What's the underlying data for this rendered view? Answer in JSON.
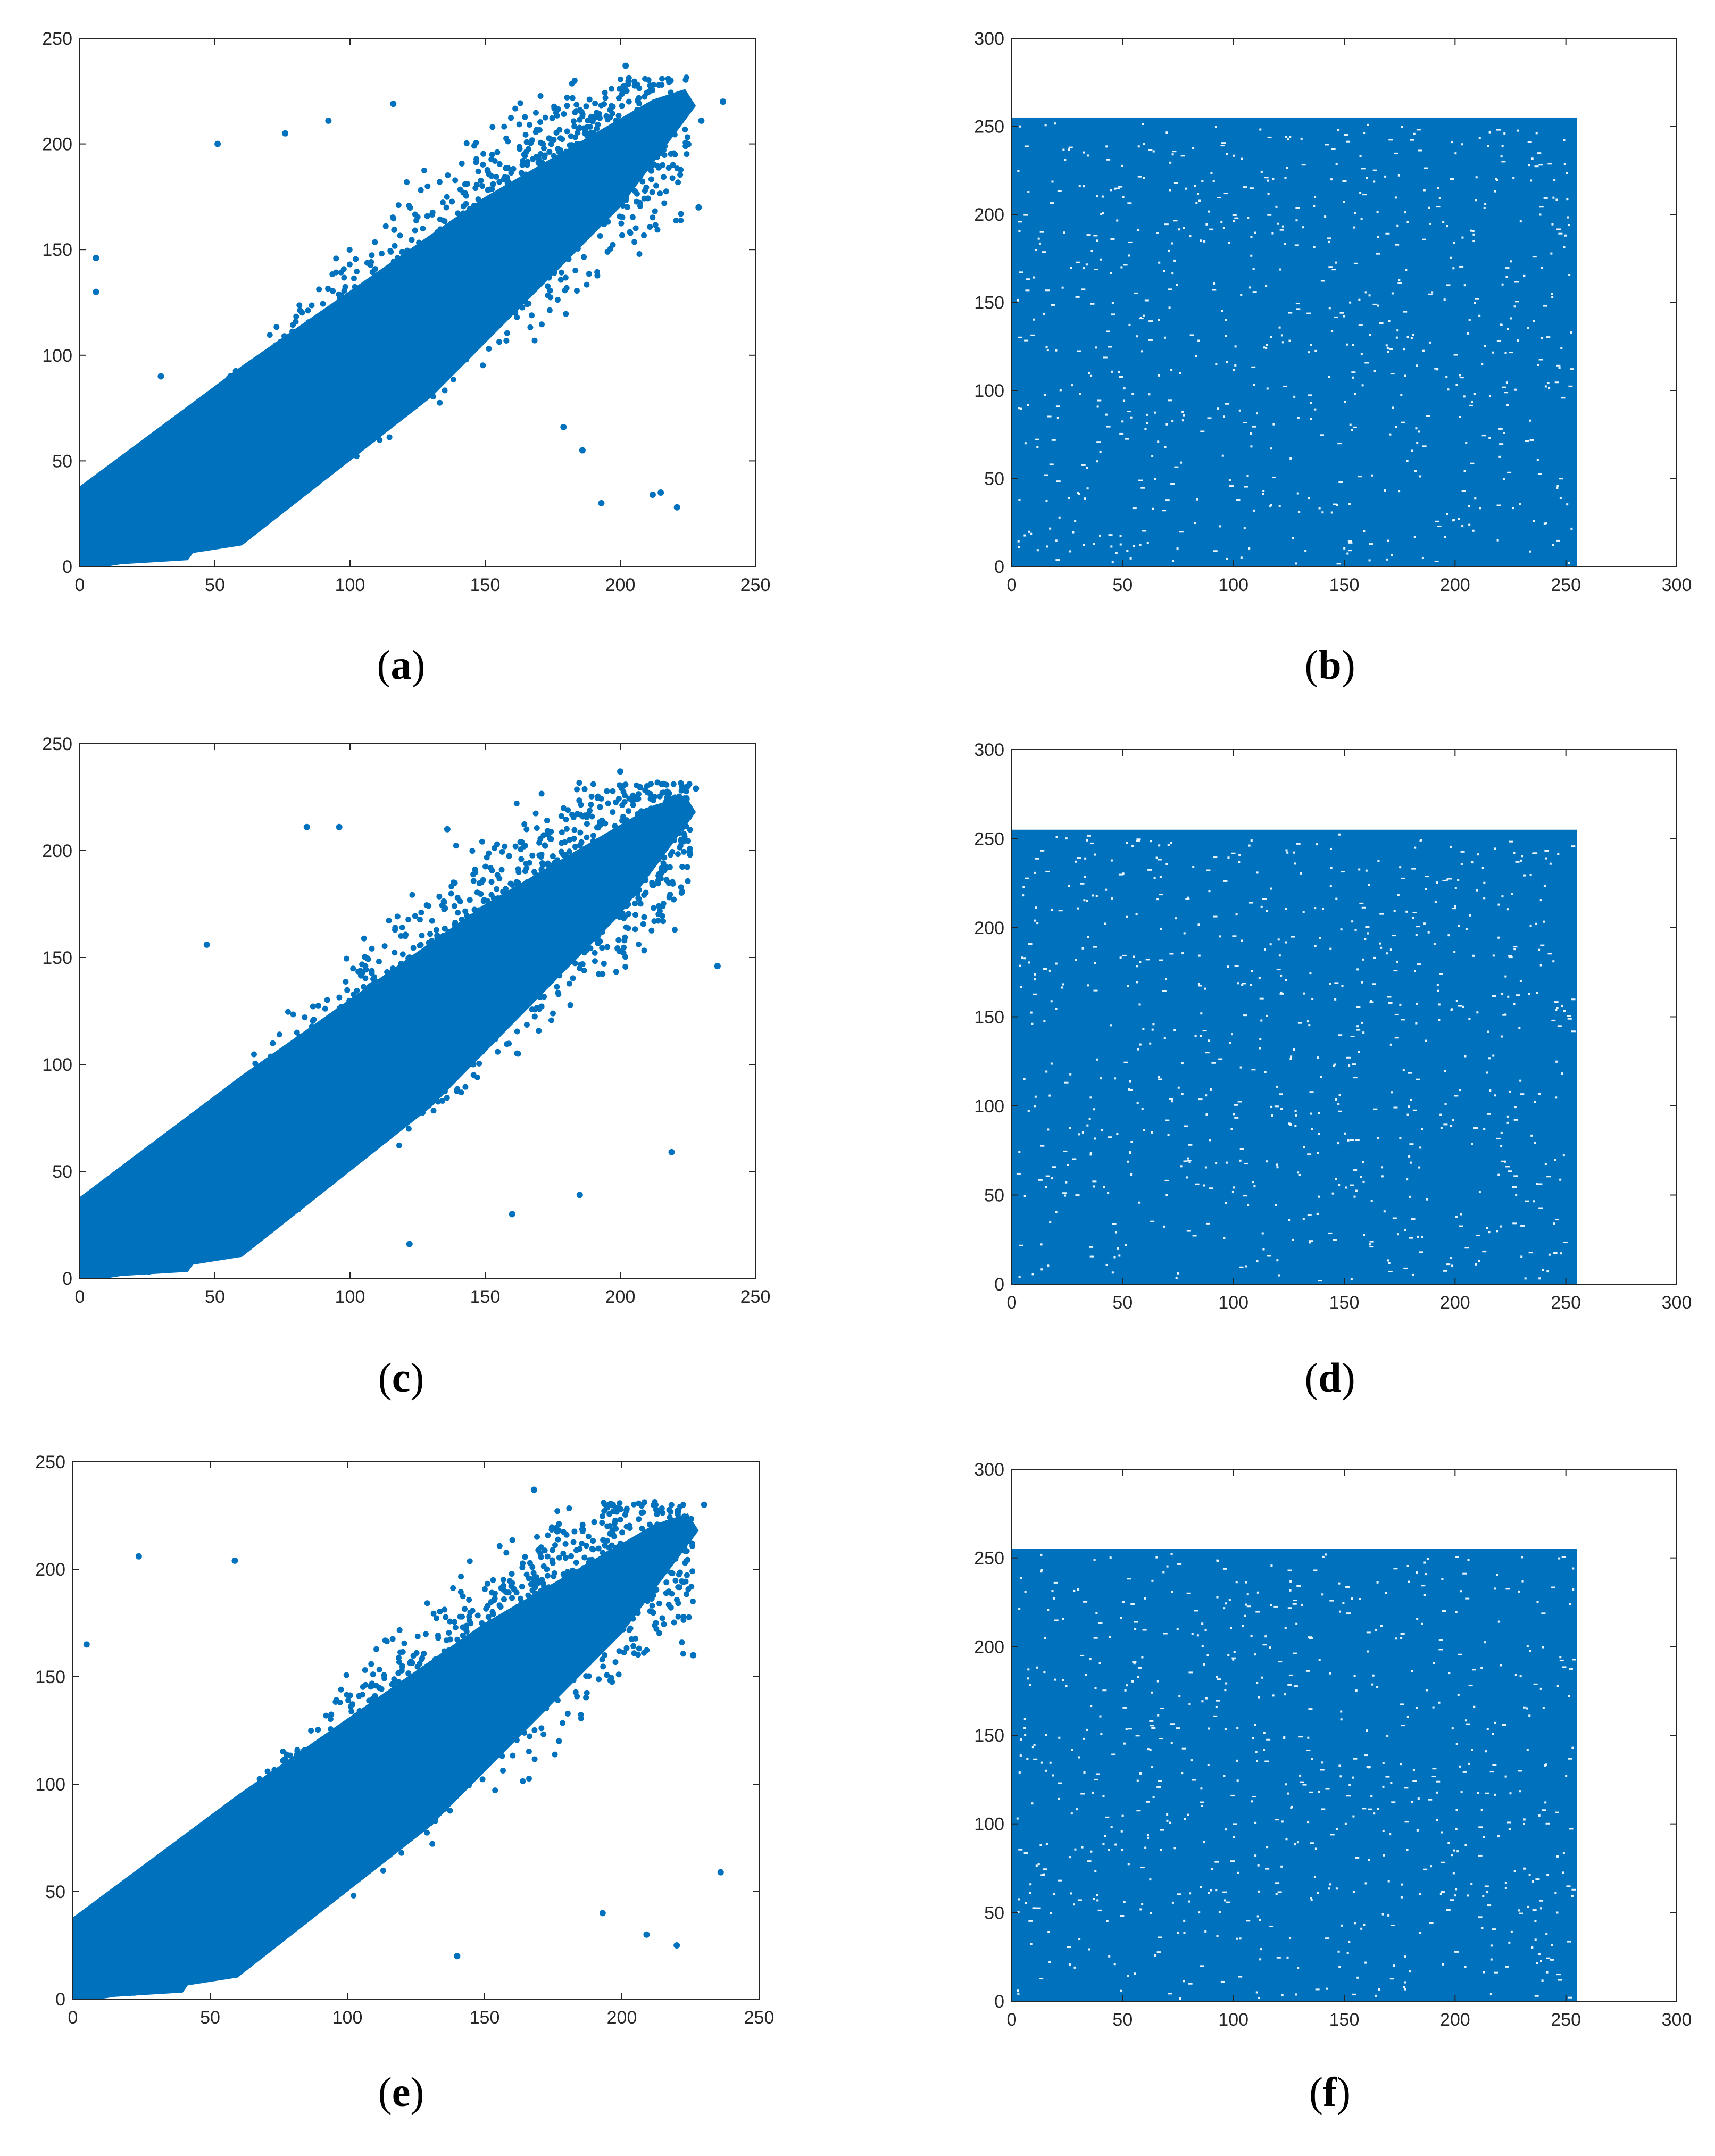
{
  "chart_data": [
    {
      "type": "scatter",
      "panel_label": "a",
      "shape": "correlated",
      "color": "#0072BD",
      "xlim": [
        0,
        250
      ],
      "ylim": [
        0,
        250
      ],
      "xticks": [
        0,
        50,
        100,
        150,
        200,
        250
      ],
      "yticks": [
        0,
        50,
        100,
        150,
        200,
        250
      ],
      "xticklabels": [
        "0",
        "50",
        "100",
        "150",
        "200",
        "250"
      ],
      "yticklabels": [
        "0",
        "50",
        "100",
        "150",
        "200",
        "250"
      ],
      "points": [
        [
          202,
          237
        ],
        [
          238,
          220
        ],
        [
          6,
          146
        ],
        [
          6,
          130
        ],
        [
          221,
          28
        ],
        [
          193,
          30
        ],
        [
          215,
          35
        ],
        [
          186,
          55
        ],
        [
          179,
          66
        ],
        [
          116,
          219
        ],
        [
          76,
          205
        ],
        [
          212,
          34
        ],
        [
          51,
          200
        ],
        [
          92,
          211
        ],
        [
          70,
          40
        ],
        [
          30,
          90
        ],
        [
          230,
          211
        ],
        [
          229,
          170
        ]
      ]
    },
    {
      "type": "scatter",
      "panel_label": "b",
      "shape": "uniform",
      "color": "#0072BD",
      "xlim": [
        0,
        300
      ],
      "ylim": [
        0,
        300
      ],
      "xticks": [
        0,
        50,
        100,
        150,
        200,
        250,
        300
      ],
      "yticks": [
        0,
        50,
        100,
        150,
        200,
        250,
        300
      ],
      "xticklabels": [
        "0",
        "50",
        "100",
        "150",
        "200",
        "250",
        "300"
      ],
      "yticklabels": [
        "0",
        "50",
        "100",
        "150",
        "200",
        "250",
        "300"
      ],
      "x_range": [
        0,
        255
      ],
      "y_range": [
        0,
        255
      ]
    },
    {
      "type": "scatter",
      "panel_label": "c",
      "shape": "correlated",
      "color": "#0072BD",
      "xlim": [
        0,
        250
      ],
      "ylim": [
        0,
        250
      ],
      "xticks": [
        0,
        50,
        100,
        150,
        200,
        250
      ],
      "yticks": [
        0,
        50,
        100,
        150,
        200,
        250
      ],
      "xticklabels": [
        "0",
        "50",
        "100",
        "150",
        "200",
        "250"
      ],
      "yticklabels": [
        "0",
        "50",
        "100",
        "150",
        "200",
        "250"
      ],
      "points": [
        [
          236,
          146
        ],
        [
          219,
          59
        ],
        [
          200,
          237
        ],
        [
          185,
          39
        ],
        [
          228,
          229
        ],
        [
          84,
          211
        ],
        [
          96,
          211
        ],
        [
          136,
          210
        ],
        [
          47,
          156
        ],
        [
          160,
          30
        ],
        [
          122,
          16
        ]
      ]
    },
    {
      "type": "scatter",
      "panel_label": "d",
      "shape": "uniform",
      "color": "#0072BD",
      "xlim": [
        0,
        300
      ],
      "ylim": [
        0,
        300
      ],
      "xticks": [
        0,
        50,
        100,
        150,
        200,
        250,
        300
      ],
      "yticks": [
        0,
        50,
        100,
        150,
        200,
        250,
        300
      ],
      "xticklabels": [
        "0",
        "50",
        "100",
        "150",
        "200",
        "250",
        "300"
      ],
      "yticklabels": [
        "0",
        "50",
        "100",
        "150",
        "200",
        "250",
        "300"
      ],
      "x_range": [
        0,
        255
      ],
      "y_range": [
        0,
        255
      ]
    },
    {
      "type": "scatter",
      "panel_label": "e",
      "shape": "correlated",
      "color": "#0072BD",
      "xlim": [
        0,
        250
      ],
      "ylim": [
        0,
        250
      ],
      "xticks": [
        0,
        50,
        100,
        150,
        200,
        250
      ],
      "yticks": [
        0,
        50,
        100,
        150,
        200,
        250
      ],
      "xticklabels": [
        "0",
        "50",
        "100",
        "150",
        "200",
        "250"
      ],
      "yticklabels": [
        "0",
        "50",
        "100",
        "150",
        "200",
        "250"
      ],
      "points": [
        [
          236,
          59
        ],
        [
          168,
          237
        ],
        [
          226,
          160
        ],
        [
          200,
          190
        ],
        [
          220,
          25
        ],
        [
          209,
          30
        ],
        [
          24,
          206
        ],
        [
          59,
          204
        ],
        [
          5,
          165
        ],
        [
          230,
          230
        ],
        [
          193,
          40
        ],
        [
          140,
          20
        ]
      ]
    },
    {
      "type": "scatter",
      "panel_label": "f",
      "shape": "uniform",
      "color": "#0072BD",
      "xlim": [
        0,
        300
      ],
      "ylim": [
        0,
        300
      ],
      "xticks": [
        0,
        50,
        100,
        150,
        200,
        250,
        300
      ],
      "yticks": [
        0,
        50,
        100,
        150,
        200,
        250,
        300
      ],
      "xticklabels": [
        "0",
        "50",
        "100",
        "150",
        "200",
        "250",
        "300"
      ],
      "yticklabels": [
        "0",
        "50",
        "100",
        "150",
        "200",
        "250",
        "300"
      ],
      "x_range": [
        0,
        255
      ],
      "y_range": [
        0,
        255
      ]
    }
  ]
}
